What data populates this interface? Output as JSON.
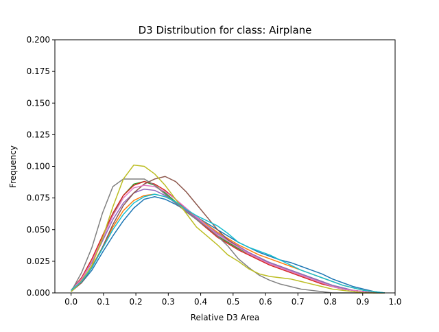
{
  "chart_data": {
    "type": "line",
    "title": "D3 Distribution for class: Airplane",
    "xlabel": "Relative D3 Area",
    "ylabel": "Frequency",
    "xlim": [
      -0.05,
      1.0
    ],
    "ylim": [
      0.0,
      0.2
    ],
    "xticks": [
      0.0,
      0.1,
      0.2,
      0.3,
      0.4,
      0.5,
      0.6,
      0.7,
      0.8,
      0.9,
      1.0
    ],
    "xtick_labels": [
      "0.0",
      "0.1",
      "0.2",
      "0.3",
      "0.4",
      "0.5",
      "0.6",
      "0.7",
      "0.8",
      "0.9",
      "1.0"
    ],
    "yticks": [
      0.0,
      0.025,
      0.05,
      0.075,
      0.1,
      0.125,
      0.15,
      0.175,
      0.2
    ],
    "ytick_labels": [
      "0.000",
      "0.025",
      "0.050",
      "0.075",
      "0.100",
      "0.125",
      "0.150",
      "0.175",
      "0.200"
    ],
    "grid": false,
    "legend": false,
    "x": [
      0.0,
      0.0323,
      0.0645,
      0.0968,
      0.129,
      0.1613,
      0.1935,
      0.2258,
      0.2581,
      0.2903,
      0.3226,
      0.3548,
      0.3871,
      0.4194,
      0.4516,
      0.4839,
      0.5161,
      0.5484,
      0.5806,
      0.6129,
      0.6452,
      0.6774,
      0.7097,
      0.7419,
      0.7742,
      0.8065,
      0.8387,
      0.871,
      0.9032,
      0.9355,
      0.9677
    ],
    "series": [
      {
        "color": "#1f77b4",
        "values": [
          0.002,
          0.008,
          0.018,
          0.032,
          0.045,
          0.057,
          0.067,
          0.074,
          0.076,
          0.074,
          0.07,
          0.065,
          0.06,
          0.055,
          0.05,
          0.045,
          0.04,
          0.036,
          0.032,
          0.029,
          0.026,
          0.024,
          0.021,
          0.018,
          0.015,
          0.011,
          0.008,
          0.005,
          0.003,
          0.001,
          0.0
        ]
      },
      {
        "color": "#ff7f0e",
        "values": [
          0.002,
          0.01,
          0.021,
          0.036,
          0.052,
          0.065,
          0.073,
          0.077,
          0.078,
          0.076,
          0.072,
          0.066,
          0.06,
          0.054,
          0.048,
          0.043,
          0.038,
          0.034,
          0.03,
          0.027,
          0.024,
          0.021,
          0.018,
          0.015,
          0.012,
          0.009,
          0.006,
          0.004,
          0.002,
          0.001,
          0.0
        ]
      },
      {
        "color": "#2ca02c",
        "values": [
          0.002,
          0.012,
          0.025,
          0.043,
          0.062,
          0.077,
          0.086,
          0.088,
          0.085,
          0.079,
          0.072,
          0.065,
          0.058,
          0.051,
          0.045,
          0.04,
          0.035,
          0.031,
          0.027,
          0.024,
          0.021,
          0.018,
          0.015,
          0.012,
          0.009,
          0.006,
          0.004,
          0.002,
          0.001,
          0.0,
          0.0
        ]
      },
      {
        "color": "#d62728",
        "values": [
          0.002,
          0.012,
          0.027,
          0.045,
          0.063,
          0.077,
          0.085,
          0.088,
          0.086,
          0.081,
          0.074,
          0.066,
          0.058,
          0.051,
          0.044,
          0.039,
          0.034,
          0.03,
          0.026,
          0.022,
          0.019,
          0.016,
          0.013,
          0.01,
          0.007,
          0.005,
          0.003,
          0.002,
          0.001,
          0.0,
          0.0
        ]
      },
      {
        "color": "#9467bd",
        "values": [
          0.002,
          0.011,
          0.024,
          0.041,
          0.058,
          0.071,
          0.079,
          0.082,
          0.081,
          0.077,
          0.071,
          0.065,
          0.059,
          0.053,
          0.047,
          0.042,
          0.037,
          0.032,
          0.028,
          0.024,
          0.021,
          0.018,
          0.015,
          0.012,
          0.009,
          0.006,
          0.004,
          0.002,
          0.001,
          0.0,
          0.0
        ]
      },
      {
        "color": "#8c564b",
        "values": [
          0.001,
          0.008,
          0.02,
          0.036,
          0.054,
          0.069,
          0.079,
          0.086,
          0.09,
          0.092,
          0.088,
          0.08,
          0.07,
          0.06,
          0.05,
          0.042,
          0.036,
          0.031,
          0.027,
          0.023,
          0.02,
          0.017,
          0.014,
          0.011,
          0.008,
          0.005,
          0.003,
          0.002,
          0.001,
          0.0,
          0.0
        ]
      },
      {
        "color": "#e377c2",
        "values": [
          0.002,
          0.011,
          0.025,
          0.043,
          0.061,
          0.075,
          0.083,
          0.085,
          0.084,
          0.08,
          0.074,
          0.067,
          0.06,
          0.053,
          0.046,
          0.041,
          0.036,
          0.031,
          0.027,
          0.023,
          0.02,
          0.017,
          0.014,
          0.011,
          0.008,
          0.005,
          0.003,
          0.002,
          0.001,
          0.0,
          0.0
        ]
      },
      {
        "color": "#7f7f7f",
        "values": [
          0.001,
          0.016,
          0.036,
          0.063,
          0.084,
          0.09,
          0.09,
          0.09,
          0.085,
          0.078,
          0.071,
          0.064,
          0.058,
          0.052,
          0.045,
          0.037,
          0.027,
          0.02,
          0.014,
          0.01,
          0.007,
          0.005,
          0.003,
          0.002,
          0.001,
          0.0,
          0.0,
          0.0,
          0.0,
          0.0,
          0.0
        ]
      },
      {
        "color": "#bcbd22",
        "values": [
          0.001,
          0.009,
          0.022,
          0.043,
          0.068,
          0.09,
          0.101,
          0.1,
          0.094,
          0.085,
          0.074,
          0.063,
          0.052,
          0.045,
          0.038,
          0.03,
          0.025,
          0.019,
          0.015,
          0.013,
          0.012,
          0.011,
          0.009,
          0.007,
          0.005,
          0.003,
          0.002,
          0.001,
          0.0,
          0.0,
          0.0
        ]
      },
      {
        "color": "#17becf",
        "values": [
          0.002,
          0.009,
          0.02,
          0.035,
          0.05,
          0.062,
          0.071,
          0.076,
          0.078,
          0.076,
          0.072,
          0.066,
          0.061,
          0.057,
          0.053,
          0.047,
          0.04,
          0.036,
          0.033,
          0.03,
          0.026,
          0.022,
          0.018,
          0.015,
          0.012,
          0.009,
          0.006,
          0.004,
          0.002,
          0.001,
          0.0
        ]
      }
    ]
  }
}
